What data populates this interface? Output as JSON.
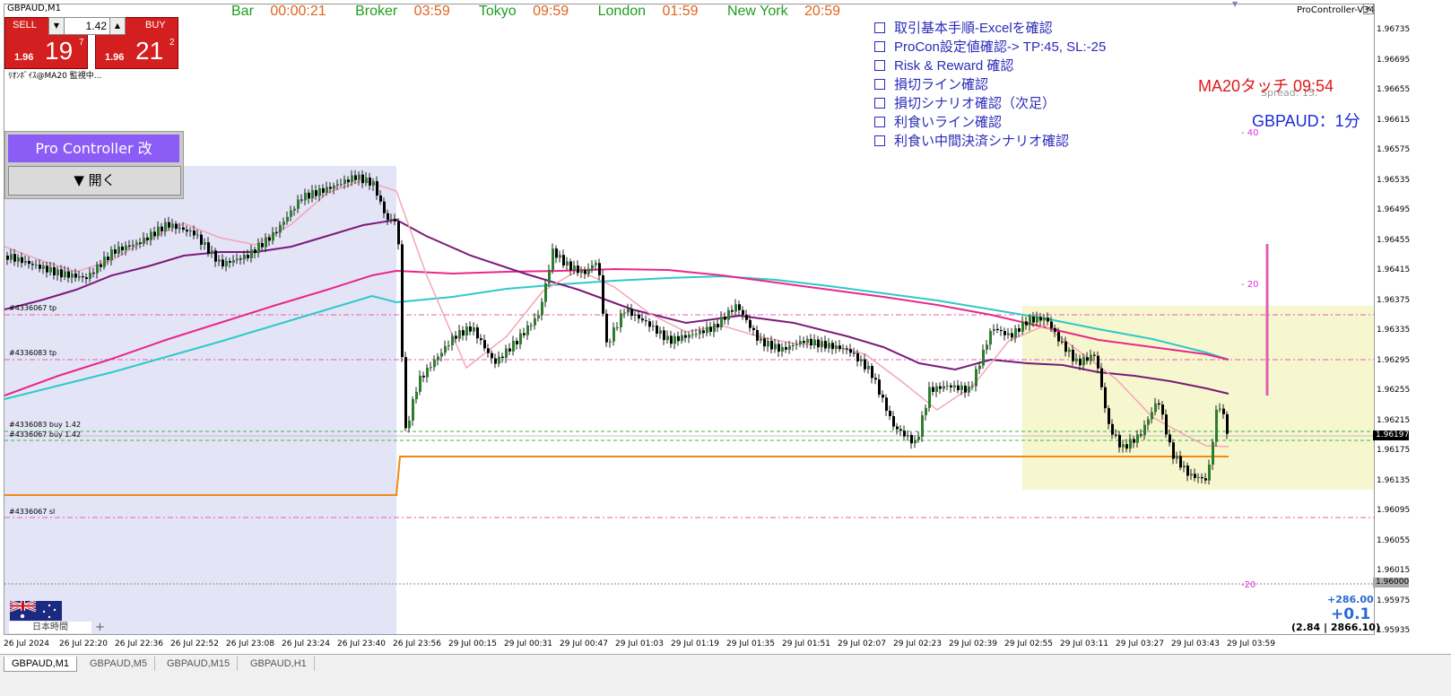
{
  "header": {
    "symbol": "GBPAUD,M1",
    "indicator_name": "ProController-V34"
  },
  "timers": [
    {
      "label": "Bar",
      "value": "00:00:21"
    },
    {
      "label": "Broker",
      "value": "03:59"
    },
    {
      "label": "Tokyo",
      "value": "09:59"
    },
    {
      "label": "London",
      "value": "01:59"
    },
    {
      "label": "New York",
      "value": "20:59"
    }
  ],
  "one_click": {
    "sell_label": "SELL",
    "buy_label": "BUY",
    "sell_prefix": "1.96",
    "sell_big": "19",
    "sell_sup": "7",
    "buy_prefix": "1.96",
    "buy_big": "21",
    "buy_sup": "2",
    "lot": "1.42",
    "status": "ﾘｵﾝﾎﾞｲｽ@MA20 監視中..."
  },
  "pro_controller": {
    "title": "Pro Controller 改",
    "open_label": "▼ 開く"
  },
  "checklist": [
    "取引基本手順-Excelを確認",
    "ProCon設定値確認-> TP:45, SL:-25",
    "Risk & Reward 確認",
    "損切ライン確認",
    "損切シナリオ確認（次足）",
    "利食いライン確認",
    "利食い中間決済シナリオ確認"
  ],
  "ma_touch": "MA20タッチ 09:54",
  "spread": "Spread: 15.",
  "pair_label": "GBPAUD：1分",
  "lot_levels": {
    "plus40": "- 40",
    "plus20": "- 20",
    "minus20": "-20"
  },
  "price_axis": [
    "1.96735",
    "1.96695",
    "1.96655",
    "1.96615",
    "1.96575",
    "1.96535",
    "1.96495",
    "1.96455",
    "1.96415",
    "1.96375",
    "1.96335",
    "1.96295",
    "1.96255",
    "1.96215",
    "1.96175",
    "1.96135",
    "1.96095",
    "1.96055",
    "1.96015",
    "1.95975",
    "1.95935"
  ],
  "current_price": "1.96197",
  "alt_price": "1.96000",
  "time_axis": [
    "26 Jul 2024",
    "26 Jul 22:20",
    "26 Jul 22:36",
    "26 Jul 22:52",
    "26 Jul 23:08",
    "26 Jul 23:24",
    "26 Jul 23:40",
    "26 Jul 23:56",
    "29 Jul 00:15",
    "29 Jul 00:31",
    "29 Jul 00:47",
    "29 Jul 01:03",
    "29 Jul 01:19",
    "29 Jul 01:35",
    "29 Jul 01:51",
    "29 Jul 02:07",
    "29 Jul 02:23",
    "29 Jul 02:39",
    "29 Jul 02:55",
    "29 Jul 03:11",
    "29 Jul 03:27",
    "29 Jul 03:43",
    "29 Jul 03:59"
  ],
  "order_lines": {
    "tp1": "#4336067 tp",
    "tp2": "#4336083 tp",
    "buy1": "#4336083 buy 1.42",
    "buy2": "#4336067 buy 1.42",
    "sl": "#4336067 sl"
  },
  "profit": {
    "small": "+286.00",
    "big": "+0.1",
    "info": "(2.84 | 2866.10)"
  },
  "timezone_label": "日本時間",
  "timezone_plus": "+",
  "tabs": [
    "GBPAUD,M1",
    "GBPAUD,M5",
    "GBPAUD,M15",
    "GBPAUD,H1"
  ],
  "colors": {
    "sell": "#d31f1f",
    "buy": "#d31f1f",
    "pro_controller": "#8b5cf6",
    "session_shade": "#e4e4f7",
    "zone_shade": "#f6f6cf",
    "ma_slow": "#2ec9c9",
    "ma_mid": "#e8288a",
    "ma_fast": "#7a1a7a",
    "ma_faster": "#f3a6b6",
    "candle_up": "#2e7d2e",
    "candle_down": "#000000",
    "entry_line": "#f08a10"
  }
}
